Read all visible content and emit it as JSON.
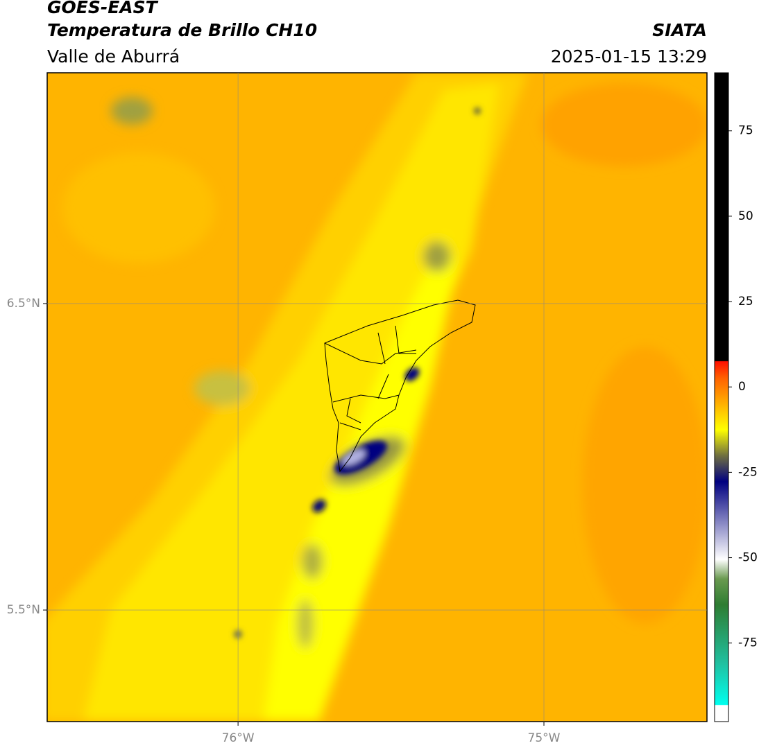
{
  "header": {
    "title": "GOES-EAST",
    "subtitle": "Temperatura de Brillo CH10",
    "region": "Valle de Aburrá",
    "source": "SIATA",
    "datetime": "2025-01-15 13:29"
  },
  "map": {
    "xlim": [
      -76.624,
      -74.467
    ],
    "ylim": [
      5.136,
      7.253
    ],
    "xticks": [
      {
        "value": -76,
        "label": "76°W"
      },
      {
        "value": -75,
        "label": "75°W"
      }
    ],
    "yticks": [
      {
        "value": 6.5,
        "label": "6.5°N"
      },
      {
        "value": 5.5,
        "label": "5.5°N"
      }
    ],
    "grid": true
  },
  "colorbar": {
    "lim": [
      -98,
      92
    ],
    "ticks": [
      -75,
      -50,
      -25,
      0,
      25,
      50,
      75
    ]
  }
}
